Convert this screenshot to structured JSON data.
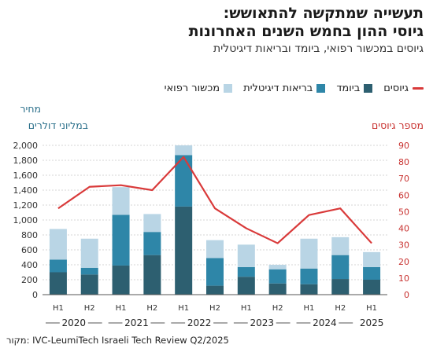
{
  "title_line1": "תעשייה שמתקשה להתאושש:",
  "title_line2": "גיוסי ההון בחמש השנים האחרונות",
  "subtitle": "גיוסים במכשור רפואי, ביומד ובריאות דיגיטלית",
  "source": "מקור: IVC-LeumiTech Israeli Tech Review Q2/2025",
  "colors": {
    "medical": "#b9d5e5",
    "biomed": "#2e86a8",
    "digital": "#2d5f70",
    "line": "#d93a3a",
    "right_axis": "#c8312f",
    "left_axis": "#2a6f8a"
  },
  "chart_data": {
    "type": "bar",
    "stacked": true,
    "title": "תעשייה שמתקשה להתאושש: גיוסי ההון בחמש השנים האחרונות",
    "left_axis": {
      "label_line1": "מחיר",
      "label_line2": "במליוני דולרים",
      "ylim": [
        0,
        2000
      ],
      "ticks": [
        "0",
        "200",
        "400",
        "600",
        "800",
        "1,000",
        "1,200",
        "1,400",
        "1,600",
        "1,800",
        "2,000"
      ]
    },
    "right_axis": {
      "label": "מספר גיוסים",
      "ylim": [
        0,
        90
      ],
      "ticks": [
        "0",
        "10",
        "20",
        "30",
        "40",
        "50",
        "60",
        "70",
        "80",
        "90"
      ]
    },
    "categories": [
      "H1",
      "H2",
      "H1",
      "H2",
      "H1",
      "H2",
      "H1",
      "H2",
      "H1",
      "H2",
      "H1"
    ],
    "years": [
      "2020",
      "2021",
      "2022",
      "2023",
      "2024",
      "2025"
    ],
    "series": [
      {
        "name": "גיוסים",
        "key": "digital",
        "values": [
          300,
          270,
          390,
          530,
          1180,
          120,
          240,
          150,
          140,
          210,
          200
        ]
      },
      {
        "name": "ביומד",
        "key": "biomed",
        "values": [
          170,
          90,
          680,
          310,
          690,
          370,
          130,
          190,
          210,
          320,
          170
        ]
      },
      {
        "name": "בריאות דיגיטלית",
        "key": "medical",
        "values": [
          410,
          390,
          370,
          240,
          130,
          240,
          300,
          60,
          400,
          240,
          200
        ]
      }
    ],
    "line_series": {
      "name": "מספר גיוסים",
      "values": [
        52,
        65,
        66,
        63,
        83,
        52,
        40,
        31,
        48,
        52,
        31
      ]
    },
    "legend": [
      {
        "label": "גיוסים",
        "kind": "line",
        "color_key": "line"
      },
      {
        "label": "ביומד",
        "kind": "box",
        "color_key": "digital"
      },
      {
        "label": "בריאות דיגיטלית",
        "kind": "box",
        "color_key": "biomed"
      },
      {
        "label": "מכשור רפואי",
        "kind": "box",
        "color_key": "medical"
      }
    ]
  }
}
